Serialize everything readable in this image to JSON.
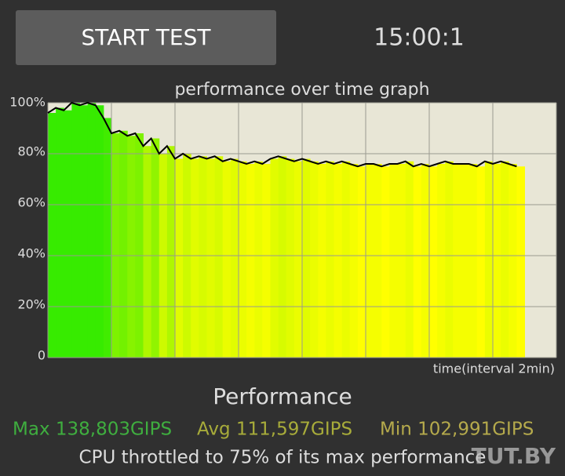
{
  "button": {
    "label": "START TEST"
  },
  "timer": "15:00:1",
  "chart_data": {
    "type": "line",
    "title": "performance over time graph",
    "x_label": "time(interval 2min)",
    "x": [
      0,
      0.25,
      0.5,
      0.75,
      1,
      1.25,
      1.5,
      1.75,
      2,
      2.25,
      2.5,
      2.75,
      3,
      3.25,
      3.5,
      3.75,
      4,
      4.25,
      4.5,
      4.75,
      5,
      5.25,
      5.5,
      5.75,
      6,
      6.25,
      6.5,
      6.75,
      7,
      7.25,
      7.5,
      7.75,
      8,
      8.25,
      8.5,
      8.75,
      9,
      9.25,
      9.5,
      9.75,
      10,
      10.25,
      10.5,
      10.75,
      11,
      11.25,
      11.5,
      11.75,
      12,
      12.25,
      12.5,
      12.75,
      13,
      13.25,
      13.5,
      13.75,
      14,
      14.25,
      14.5,
      14.75
    ],
    "values": [
      96,
      98,
      97,
      100,
      99,
      100,
      99,
      94,
      88,
      89,
      87,
      88,
      83,
      86,
      80,
      83,
      78,
      80,
      78,
      79,
      78,
      79,
      77,
      78,
      77,
      76,
      77,
      76,
      78,
      79,
      78,
      77,
      78,
      77,
      76,
      77,
      76,
      77,
      76,
      75,
      76,
      76,
      75,
      76,
      76,
      77,
      75,
      76,
      75,
      76,
      77,
      76,
      76,
      76,
      75,
      77,
      76,
      77,
      76,
      75
    ],
    "xlim": [
      0,
      16
    ],
    "xticks": [
      0,
      2,
      4,
      6,
      8,
      10,
      12,
      14,
      16
    ],
    "ylim": [
      0,
      100
    ],
    "yticks": [
      {
        "value": 0,
        "label": "0"
      },
      {
        "value": 20,
        "label": "20%"
      },
      {
        "value": 40,
        "label": "40%"
      },
      {
        "value": 60,
        "label": "60%"
      },
      {
        "value": 80,
        "label": "80%"
      },
      {
        "value": 100,
        "label": "100%"
      }
    ],
    "grid": true,
    "line_color": "#000000"
  },
  "summary": {
    "title": "Performance",
    "max": "Max 138,803GIPS",
    "avg": "Avg 111,597GIPS",
    "min": "Min 102,991GIPS",
    "note": "CPU throttled to 75% of its max performance"
  },
  "watermark": "TUT.BY"
}
